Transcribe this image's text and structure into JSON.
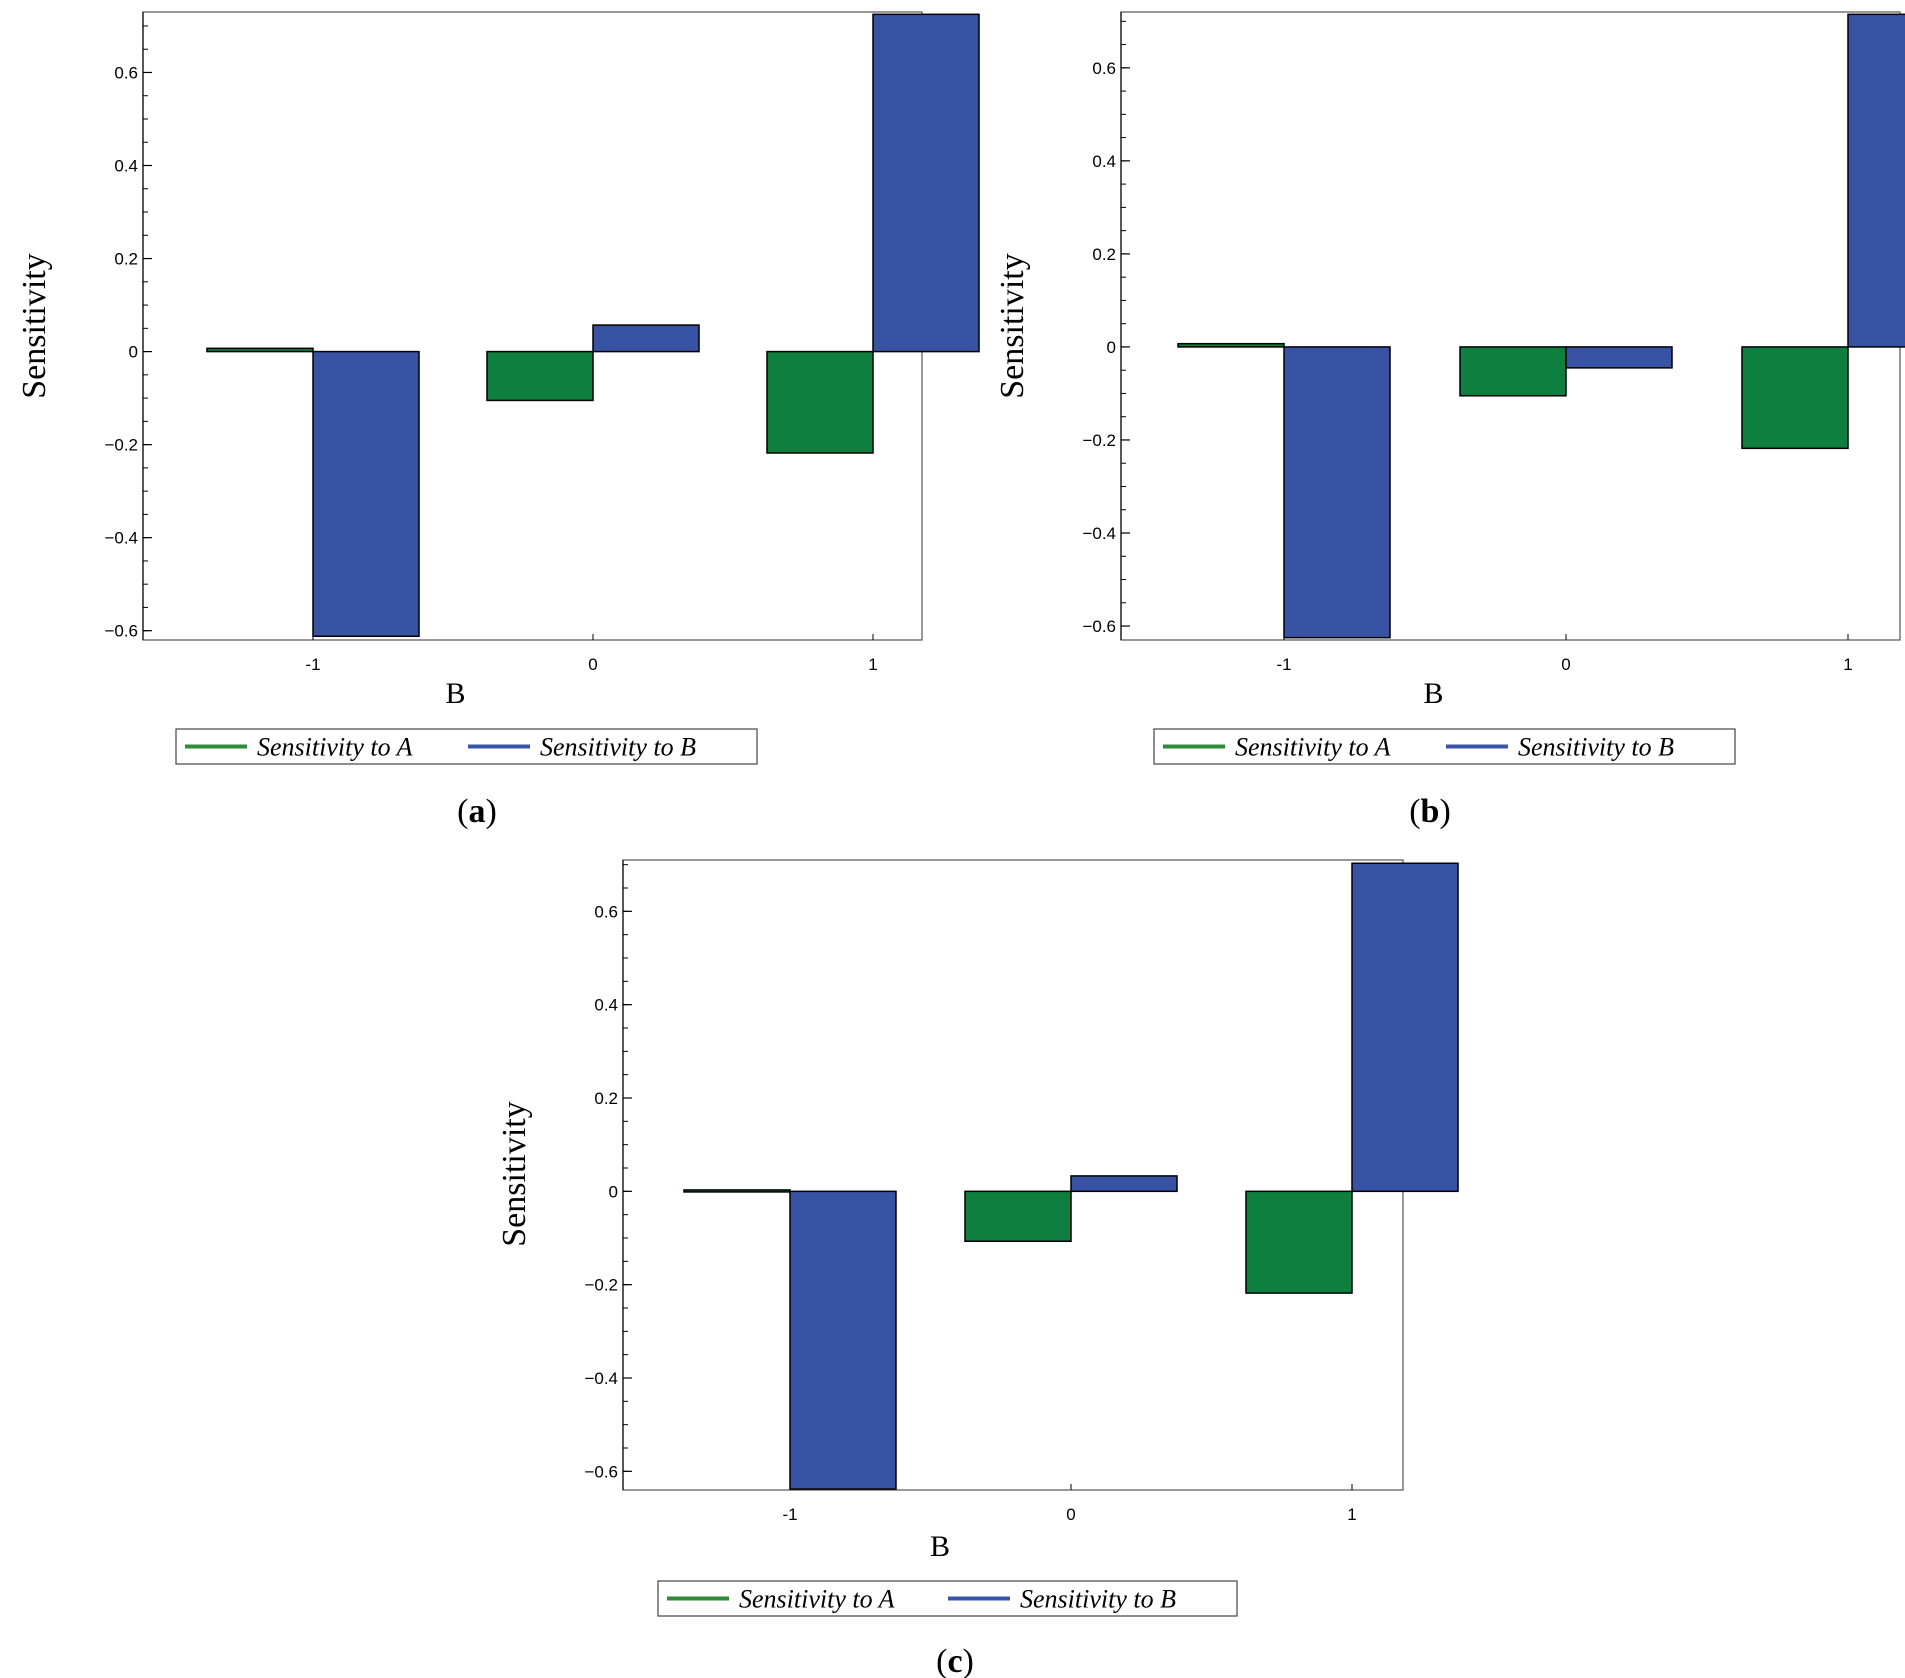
{
  "chart_data": [
    {
      "type": "bar",
      "panel_label": "a",
      "xlabel": "B",
      "ylabel": "Sensitivity",
      "categories": [
        "-1",
        "0",
        "1"
      ],
      "series": [
        {
          "name": "Sensitivity to A",
          "color": "#0e7f3e",
          "legend_color": "#2e8b3a",
          "values": [
            0.007,
            -0.105,
            -0.218
          ]
        },
        {
          "name": "Sensitivity to B",
          "color": "#3853a4",
          "legend_color": "#3a55a8",
          "values": [
            -0.612,
            0.057,
            0.725
          ]
        }
      ],
      "ylim": [
        -0.62,
        0.73
      ],
      "yticks": [
        -0.6,
        -0.4,
        -0.2,
        0,
        0.2,
        0.4,
        0.6
      ],
      "ytick_labels": [
        "−0.6",
        "−0.4",
        "−0.2",
        "0",
        "0.2",
        "0.4",
        "0.6"
      ],
      "grid": false,
      "legend": "bottom"
    },
    {
      "type": "bar",
      "panel_label": "b",
      "xlabel": "B",
      "ylabel": "Sensitivity",
      "categories": [
        "-1",
        "0",
        "1"
      ],
      "series": [
        {
          "name": "Sensitivity to A",
          "color": "#0e7f3e",
          "legend_color": "#2e8b3a",
          "values": [
            0.007,
            -0.105,
            -0.218
          ]
        },
        {
          "name": "Sensitivity to B",
          "color": "#3853a4",
          "legend_color": "#3a55a8",
          "values": [
            -0.625,
            -0.045,
            0.715
          ]
        }
      ],
      "ylim": [
        -0.63,
        0.72
      ],
      "yticks": [
        -0.6,
        -0.4,
        -0.2,
        0,
        0.2,
        0.4,
        0.6
      ],
      "ytick_labels": [
        "−0.6",
        "−0.4",
        "−0.2",
        "0",
        "0.2",
        "0.4",
        "0.6"
      ],
      "grid": false,
      "legend": "bottom"
    },
    {
      "type": "bar",
      "panel_label": "c",
      "xlabel": "B",
      "ylabel": "Sensitivity",
      "categories": [
        "-1",
        "0",
        "1"
      ],
      "series": [
        {
          "name": "Sensitivity to A",
          "color": "#0e7f3e",
          "legend_color": "#2e8b3a",
          "values": [
            0.003,
            -0.107,
            -0.218
          ]
        },
        {
          "name": "Sensitivity to B",
          "color": "#3853a4",
          "legend_color": "#3a55a8",
          "values": [
            -0.638,
            0.033,
            0.703
          ]
        }
      ],
      "ylim": [
        -0.64,
        0.71
      ],
      "yticks": [
        -0.6,
        -0.4,
        -0.2,
        0,
        0.2,
        0.4,
        0.6
      ],
      "ytick_labels": [
        "−0.6",
        "−0.4",
        "−0.2",
        "0",
        "0.2",
        "0.4",
        "0.6"
      ],
      "grid": false,
      "legend": "bottom"
    }
  ]
}
